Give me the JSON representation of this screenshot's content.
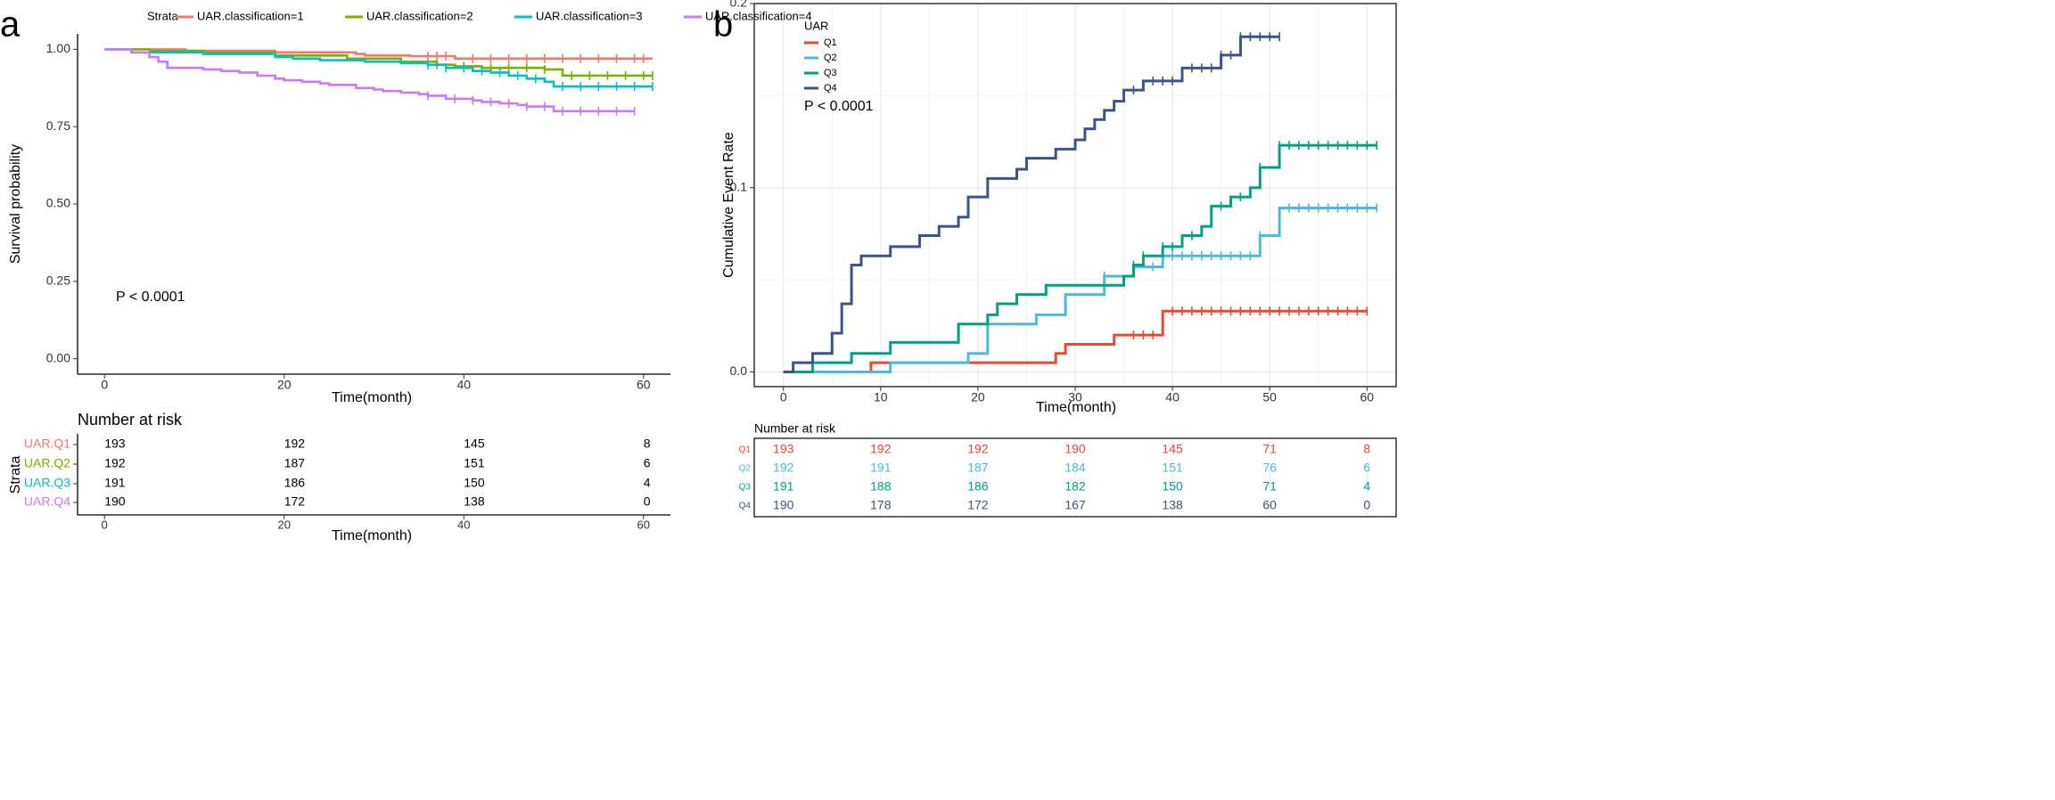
{
  "chart_data": [
    {
      "panel_label": "a",
      "type": "line",
      "subtype": "kaplan-meier survival",
      "legend_title": "Strata",
      "legend_position": "top",
      "xlabel": "Time(month)",
      "ylabel": "Survival probability",
      "xlim": [
        -3,
        63
      ],
      "ylim": [
        -0.05,
        1.05
      ],
      "x_ticks": [
        0,
        20,
        40,
        60
      ],
      "y_ticks": [
        0.0,
        0.25,
        0.5,
        0.75,
        1.0
      ],
      "y_tick_labels": [
        "0.00",
        "0.25",
        "0.50",
        "0.75",
        "1.00"
      ],
      "pvalue": "P < 0.0001",
      "grid": false,
      "series": [
        {
          "name": "UAR.classification=1",
          "color": "#F8766D",
          "x": [
            0,
            9,
            19,
            28,
            29,
            34,
            39,
            61
          ],
          "y": [
            1.0,
            0.995,
            0.99,
            0.985,
            0.98,
            0.978,
            0.97,
            0.97
          ],
          "censor_x": [
            36,
            37,
            38,
            41,
            43,
            45,
            47,
            49,
            51,
            53,
            55,
            57,
            59,
            60
          ]
        },
        {
          "name": "UAR.classification=2",
          "color": "#7CAE00",
          "x": [
            0,
            5,
            11,
            19,
            27,
            33,
            37,
            39,
            42,
            49,
            51,
            61
          ],
          "y": [
            1.0,
            0.995,
            0.99,
            0.98,
            0.97,
            0.96,
            0.95,
            0.945,
            0.94,
            0.935,
            0.915,
            0.915
          ],
          "censor_x": [
            37,
            40,
            43,
            45,
            47,
            49,
            52,
            54,
            56,
            58,
            60,
            61
          ]
        },
        {
          "name": "UAR.classification=3",
          "color": "#00BFC4",
          "x": [
            0,
            3,
            11,
            19,
            21,
            24,
            29,
            33,
            36,
            38,
            41,
            43,
            45,
            47,
            49,
            50,
            61
          ],
          "y": [
            1.0,
            0.99,
            0.985,
            0.975,
            0.97,
            0.965,
            0.96,
            0.955,
            0.95,
            0.94,
            0.93,
            0.925,
            0.915,
            0.905,
            0.895,
            0.88,
            0.88
          ],
          "censor_x": [
            36,
            38,
            40,
            42,
            44,
            46,
            48,
            51,
            53,
            55,
            57,
            59,
            61
          ]
        },
        {
          "name": "UAR.classification=4",
          "color": "#C77CFF",
          "x": [
            0,
            3,
            5,
            6,
            7,
            11,
            13,
            15,
            17,
            19,
            20,
            22,
            24,
            25,
            28,
            30,
            31,
            33,
            35,
            36,
            38,
            41,
            42,
            44,
            46,
            47,
            50,
            59
          ],
          "y": [
            1.0,
            0.99,
            0.975,
            0.96,
            0.94,
            0.935,
            0.93,
            0.925,
            0.915,
            0.905,
            0.9,
            0.895,
            0.89,
            0.885,
            0.875,
            0.87,
            0.865,
            0.86,
            0.855,
            0.85,
            0.84,
            0.835,
            0.83,
            0.825,
            0.82,
            0.815,
            0.8,
            0.8
          ],
          "censor_x": [
            36,
            39,
            41,
            43,
            45,
            47,
            49,
            51,
            53,
            55,
            57,
            59
          ]
        }
      ],
      "risk_table": {
        "title": "Number at risk",
        "strata_label": "Strata",
        "xlabel": "Time(month)",
        "times": [
          0,
          20,
          40,
          60
        ],
        "rows": [
          {
            "label": "UAR.Q1",
            "color": "#F8766D",
            "values": [
              "193",
              "192",
              "145",
              "8"
            ]
          },
          {
            "label": "UAR.Q2",
            "color": "#7CAE00",
            "values": [
              "192",
              "187",
              "151",
              "6"
            ]
          },
          {
            "label": "UAR.Q3",
            "color": "#00BFC4",
            "values": [
              "191",
              "186",
              "150",
              "4"
            ]
          },
          {
            "label": "UAR.Q4",
            "color": "#C77CFF",
            "values": [
              "190",
              "172",
              "138",
              "0"
            ]
          }
        ]
      }
    },
    {
      "panel_label": "b",
      "type": "line",
      "subtype": "cumulative event rate",
      "legend_title": "UAR",
      "legend_position": "top-left",
      "xlabel": "Time(month)",
      "ylabel": "Cumulative Event Rate",
      "xlim": [
        -3,
        63
      ],
      "ylim": [
        -0.008,
        0.2
      ],
      "x_ticks": [
        0,
        10,
        20,
        30,
        40,
        50,
        60
      ],
      "y_ticks": [
        0.0,
        0.1,
        0.2
      ],
      "y_tick_labels": [
        "0.0",
        "0.1",
        "0.2"
      ],
      "pvalue": "P < 0.0001",
      "grid": true,
      "series": [
        {
          "name": "Q1",
          "color": "#E64B35",
          "x": [
            0,
            9,
            28,
            29,
            34,
            39,
            60
          ],
          "y": [
            0.0,
            0.005,
            0.01,
            0.015,
            0.02,
            0.033,
            0.033
          ],
          "censor_x": [
            36,
            37,
            38,
            40,
            41,
            42,
            43,
            44,
            45,
            46,
            47,
            48,
            49,
            50,
            51,
            52,
            53,
            54,
            55,
            56,
            57,
            58,
            59,
            60
          ]
        },
        {
          "name": "Q2",
          "color": "#4DBBD5",
          "x": [
            0,
            11,
            19,
            21,
            26,
            29,
            33,
            36,
            39,
            49,
            51,
            61
          ],
          "y": [
            0.0,
            0.005,
            0.01,
            0.026,
            0.031,
            0.042,
            0.052,
            0.057,
            0.063,
            0.074,
            0.089,
            0.089
          ],
          "censor_x": [
            33,
            36,
            38,
            40,
            41,
            42,
            43,
            44,
            45,
            46,
            47,
            48,
            49,
            52,
            53,
            54,
            55,
            56,
            57,
            58,
            59,
            60,
            61
          ]
        },
        {
          "name": "Q3",
          "color": "#00A087",
          "x": [
            0,
            3,
            7,
            11,
            18,
            21,
            22,
            24,
            27,
            35,
            36,
            37,
            39,
            41,
            43,
            44,
            46,
            48,
            49,
            51,
            61
          ],
          "y": [
            0.0,
            0.005,
            0.01,
            0.016,
            0.026,
            0.031,
            0.037,
            0.042,
            0.047,
            0.052,
            0.058,
            0.063,
            0.068,
            0.074,
            0.079,
            0.09,
            0.095,
            0.1,
            0.111,
            0.123,
            0.123
          ],
          "censor_x": [
            36,
            37,
            39,
            40,
            42,
            45,
            47,
            49,
            51,
            52,
            53,
            54,
            55,
            56,
            57,
            58,
            59,
            60,
            61
          ]
        },
        {
          "name": "Q4",
          "color": "#3C5488",
          "x": [
            0,
            1,
            3,
            5,
            6,
            7,
            8,
            11,
            14,
            16,
            18,
            19,
            21,
            24,
            25,
            28,
            30,
            31,
            32,
            33,
            34,
            35,
            36,
            37,
            39,
            41,
            45,
            47,
            51
          ],
          "y": [
            0.0,
            0.005,
            0.01,
            0.021,
            0.037,
            0.058,
            0.063,
            0.068,
            0.074,
            0.079,
            0.084,
            0.095,
            0.105,
            0.11,
            0.116,
            0.121,
            0.126,
            0.132,
            0.137,
            0.142,
            0.147,
            0.153,
            0.153,
            0.158,
            0.158,
            0.165,
            0.172,
            0.182,
            0.182
          ],
          "censor_x": [
            36,
            38,
            39,
            40,
            42,
            43,
            44,
            45,
            46,
            47,
            48,
            49,
            50,
            51
          ]
        }
      ],
      "risk_table": {
        "title": "Number at risk",
        "times": [
          0,
          10,
          20,
          30,
          40,
          50,
          60
        ],
        "rows": [
          {
            "label": "Q1",
            "color": "#E64B35",
            "values": [
              "193",
              "192",
              "192",
              "190",
              "145",
              "71",
              "8"
            ]
          },
          {
            "label": "Q2",
            "color": "#4DBBD5",
            "values": [
              "192",
              "191",
              "187",
              "184",
              "151",
              "76",
              "6"
            ]
          },
          {
            "label": "Q3",
            "color": "#00A087",
            "values": [
              "191",
              "188",
              "186",
              "182",
              "150",
              "71",
              "4"
            ]
          },
          {
            "label": "Q4",
            "color": "#3C5488",
            "values": [
              "190",
              "178",
              "172",
              "167",
              "138",
              "60",
              "0"
            ]
          }
        ]
      }
    }
  ]
}
